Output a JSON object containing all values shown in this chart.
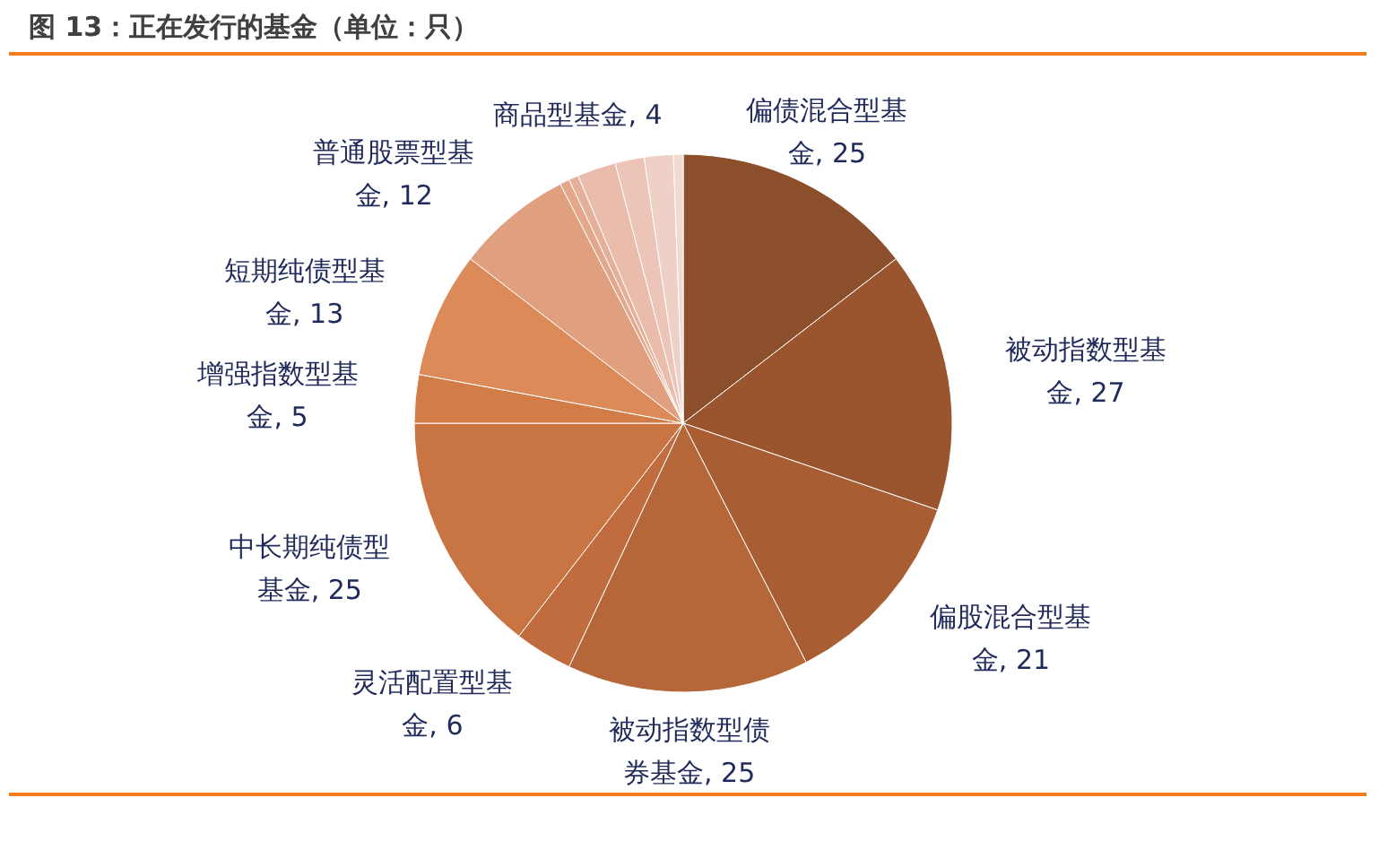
{
  "chart_data": {
    "type": "pie",
    "title": "图 13：正在发行的基金（单位：只）",
    "categories": [
      "偏债混合型基金",
      "被动指数型基金",
      "偏股混合型基金",
      "被动指数型债券基金",
      "灵活配置型基金",
      "中长期纯债型基金",
      "增强指数型基金",
      "短期纯债型基金",
      "普通股票型基金",
      null,
      null,
      "商品型基金",
      null,
      null,
      null
    ],
    "values": [
      25,
      27,
      21,
      25,
      6,
      25,
      5,
      13,
      12,
      1,
      1,
      4,
      3,
      3,
      1
    ],
    "colors": [
      "#8c4f2b",
      "#9a552e",
      "#a85d33",
      "#b5673a",
      "#c06c3e",
      "#c97443",
      "#d27c48",
      "#dc8a58",
      "#e09f7f",
      "#e3a88b",
      "#e5b09a",
      "#e9bcab",
      "#ecc5b8",
      "#efd0c6",
      "#f2dad3"
    ],
    "value_labels": [
      "25",
      "27",
      "21",
      "25",
      "6",
      "25",
      "5",
      "13",
      "12",
      null,
      null,
      "4",
      null,
      null,
      null
    ]
  }
}
